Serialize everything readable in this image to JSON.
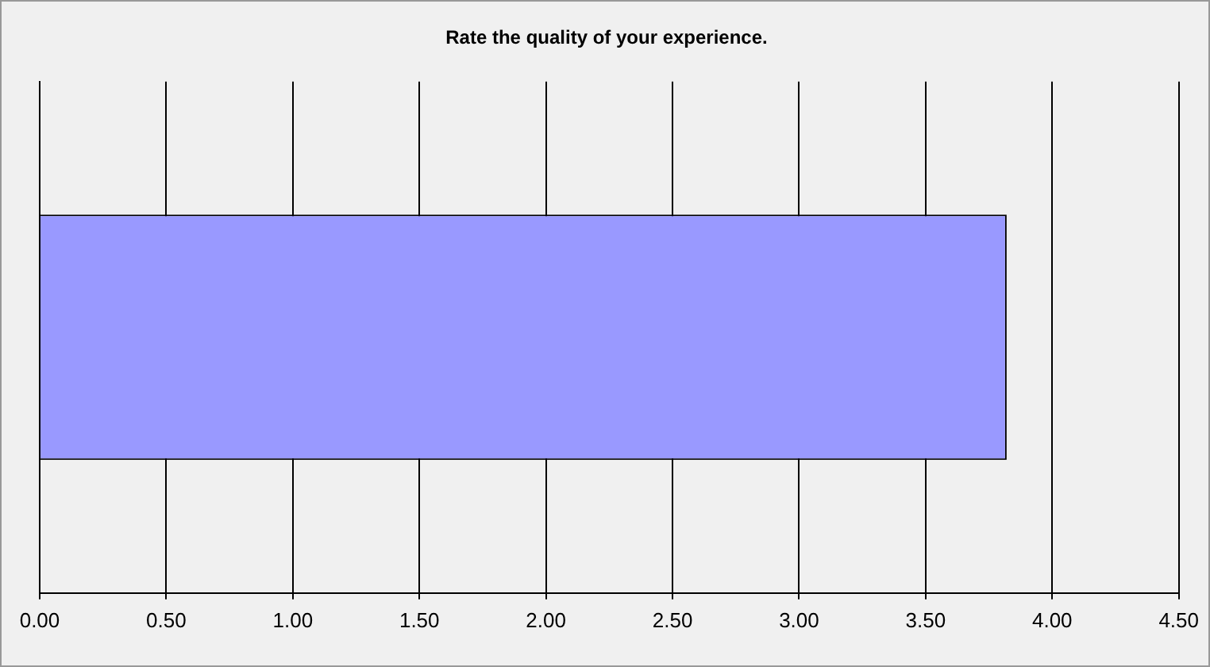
{
  "chart_data": {
    "type": "bar",
    "orientation": "horizontal",
    "title": "Rate the quality of your experience.",
    "categories": [
      null
    ],
    "values": [
      3.82
    ],
    "color": "#9999ff",
    "xlim": [
      0,
      4.5
    ],
    "xticks": [
      {
        "value": 0,
        "label": "0.00"
      },
      {
        "value": 0.5,
        "label": "0.50"
      },
      {
        "value": 1,
        "label": "1.00"
      },
      {
        "value": 1.5,
        "label": "1.50"
      },
      {
        "value": 2,
        "label": "2.00"
      },
      {
        "value": 2.5,
        "label": "2.50"
      },
      {
        "value": 3,
        "label": "3.00"
      },
      {
        "value": 3.5,
        "label": "3.50"
      },
      {
        "value": 4,
        "label": "4.00"
      },
      {
        "value": 4.5,
        "label": "4.50"
      }
    ],
    "grid": "x",
    "tick_labels": "x",
    "legend": false
  }
}
